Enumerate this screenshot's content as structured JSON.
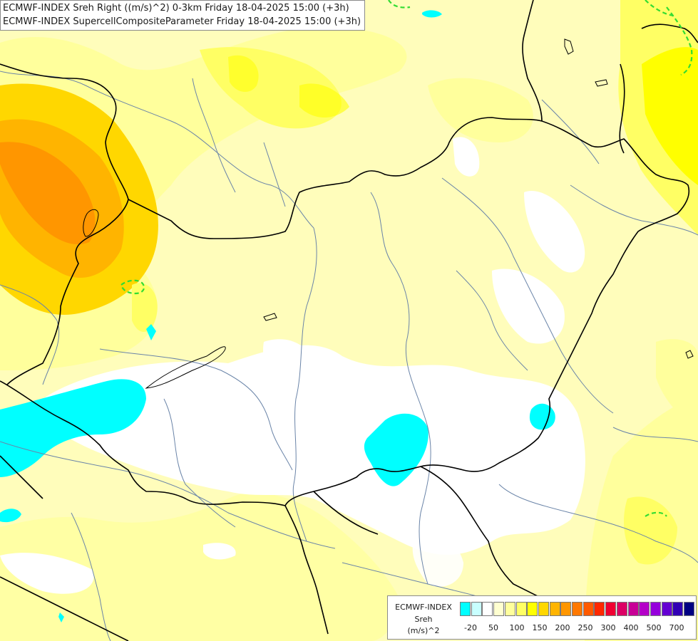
{
  "title": {
    "line1": "ECMWF-INDEX Sreh Right ((m/s)^2) 0-3km Friday 18-04-2025 15:00 (+3h)",
    "line2": "ECMWF-INDEX SupercellCompositeParameter Friday 18-04-2025 15:00 (+3h)"
  },
  "legend": {
    "line1": "ECMWF-INDEX",
    "line2": "Sreh",
    "line3": "(m/s)^2",
    "swatch_colors": [
      "#00ffff",
      "#c8ffff",
      "#ffffff",
      "#ffffd0",
      "#ffff9c",
      "#ffff64",
      "#ffff00",
      "#ffd700",
      "#ffb400",
      "#ff9600",
      "#ff7800",
      "#ff5a00",
      "#ff2800",
      "#f00032",
      "#dc0064",
      "#c80096",
      "#b400c8",
      "#9600dc",
      "#6400d2",
      "#3200b4",
      "#000082"
    ],
    "ticks": [
      "-20",
      "50",
      "100",
      "150",
      "200",
      "250",
      "300",
      "400",
      "500",
      "700"
    ]
  },
  "colors": {
    "cyan": "#00ffff",
    "white": "#ffffff",
    "pale_yellow": "#fffdbb",
    "light_yellow": "#ffff9c",
    "yellow": "#ffff64",
    "gold": "#ffd700",
    "orange": "#ffb400",
    "dark_orange": "#ff9600",
    "border_line": "#000000",
    "river_line": "#6a84a8",
    "scp_contour": "#32dc32"
  }
}
